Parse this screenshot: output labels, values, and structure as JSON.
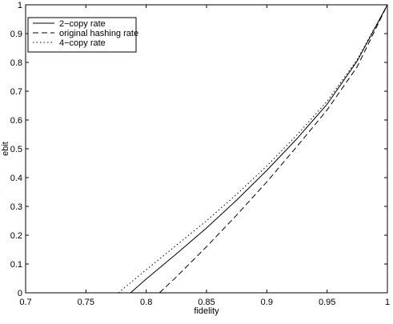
{
  "chart_data": {
    "type": "line",
    "title": "",
    "xlabel": "fidelity",
    "ylabel": "ebit",
    "xlim": [
      0.7,
      1.0
    ],
    "ylim": [
      0,
      1.0
    ],
    "xticks": [
      "0.7",
      "0.75",
      "0.8",
      "0.85",
      "0.9",
      "0.95",
      "1"
    ],
    "yticks": [
      "0",
      "0.1",
      "0.2",
      "0.3",
      "0.4",
      "0.5",
      "0.6",
      "0.7",
      "0.8",
      "0.9",
      "1"
    ],
    "grid": false,
    "legend_position": "top-left",
    "series": [
      {
        "name": "2−copy rate",
        "style": "solid",
        "color": "#000000",
        "x": [
          0.787,
          0.8,
          0.825,
          0.85,
          0.875,
          0.9,
          0.925,
          0.95,
          0.975,
          1.0
        ],
        "y": [
          0.0,
          0.048,
          0.135,
          0.225,
          0.322,
          0.425,
          0.535,
          0.655,
          0.805,
          1.0
        ]
      },
      {
        "name": "original hashing rate",
        "style": "dashed",
        "color": "#000000",
        "x": [
          0.811,
          0.825,
          0.85,
          0.875,
          0.9,
          0.925,
          0.95,
          0.975,
          1.0
        ],
        "y": [
          0.0,
          0.055,
          0.16,
          0.27,
          0.385,
          0.508,
          0.635,
          0.785,
          1.0
        ]
      },
      {
        "name": "4−copy rate",
        "style": "dotted",
        "color": "#000000",
        "x": [
          0.777,
          0.8,
          0.825,
          0.85,
          0.875,
          0.9,
          0.925,
          0.95,
          0.975,
          1.0
        ],
        "y": [
          0.0,
          0.08,
          0.165,
          0.25,
          0.342,
          0.44,
          0.548,
          0.665,
          0.81,
          1.0
        ]
      }
    ]
  }
}
